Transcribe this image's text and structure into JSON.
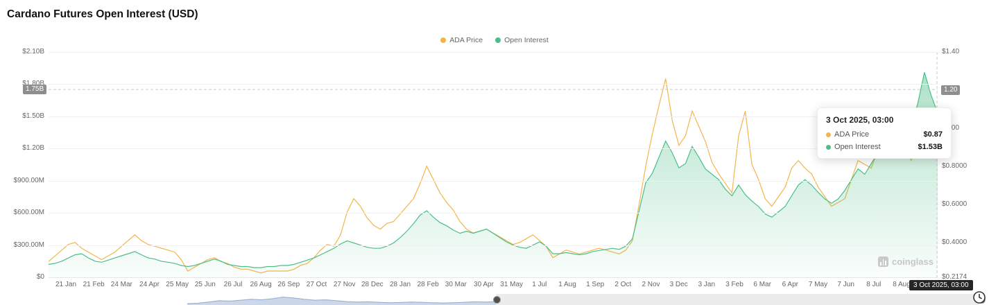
{
  "header": {
    "title": "Cardano Futures Open Interest (USD)"
  },
  "legend": [
    {
      "label": "ADA Price",
      "color": "#F2B54A"
    },
    {
      "label": "Open Interest",
      "color": "#4BBE87"
    }
  ],
  "tooltip": {
    "title": "3 Oct 2025, 03:00",
    "rows": [
      {
        "label": "ADA Price",
        "value": "$0.87",
        "color": "#F2B54A"
      },
      {
        "label": "Open Interest",
        "value": "$1.53B",
        "color": "#4BBE87"
      }
    ]
  },
  "axis_badges": {
    "left": {
      "text": "1.75B",
      "value": 1.75
    },
    "right": {
      "text": "1.20",
      "value": 1.2
    }
  },
  "crosshair": {
    "x_label": "3 Oct 2025, 03:00"
  },
  "watermark": {
    "text": "coinglass"
  },
  "chart_data": {
    "type": "line",
    "title": "Cardano Futures Open Interest (USD)",
    "xlabel": "",
    "ylabel_left": "Open Interest (USD)",
    "ylabel_right": "ADA Price (USD)",
    "legend_position": "top-center",
    "grid": "horizontal",
    "x_labels": [
      "21 Jan",
      "21 Feb",
      "24 Mar",
      "24 Apr",
      "25 May",
      "25 Jun",
      "26 Jul",
      "26 Aug",
      "26 Sep",
      "27 Oct",
      "27 Nov",
      "28 Dec",
      "28 Jan",
      "28 Feb",
      "30 Mar",
      "30 Apr",
      "31 May",
      "1 Jul",
      "1 Aug",
      "1 Sep",
      "2 Oct",
      "2 Nov",
      "3 Dec",
      "3 Jan",
      "3 Feb",
      "6 Mar",
      "6 Apr",
      "7 May",
      "7 Jun",
      "8 Jul",
      "8 Aug"
    ],
    "y_left": {
      "min": 0,
      "max": 2.1,
      "unit": "USD billions",
      "ticks": [
        {
          "v": 2.1,
          "label": "$2.10B"
        },
        {
          "v": 1.8,
          "label": "$1.80B"
        },
        {
          "v": 1.5,
          "label": "$1.50B"
        },
        {
          "v": 1.2,
          "label": "$1.20B"
        },
        {
          "v": 0.9,
          "label": "$900.00M"
        },
        {
          "v": 0.6,
          "label": "$600.00M"
        },
        {
          "v": 0.3,
          "label": "$300.00M"
        },
        {
          "v": 0.0,
          "label": "$0"
        }
      ]
    },
    "y_right": {
      "min": 0.2174,
      "max": 1.4,
      "unit": "USD",
      "ticks": [
        {
          "v": 1.4,
          "label": "$1.40"
        },
        {
          "v": 1.2,
          "label": "$1.20"
        },
        {
          "v": 1.0,
          "label": "$1.00"
        },
        {
          "v": 0.8,
          "label": "$0.8000"
        },
        {
          "v": 0.6,
          "label": "$0.6000"
        },
        {
          "v": 0.4,
          "label": "$0.4000"
        },
        {
          "v": 0.2174,
          "label": "$0.2174"
        }
      ]
    },
    "series": [
      {
        "name": "ADA Price",
        "axis": "right",
        "color": "#F2B54A",
        "fill": false,
        "values": [
          0.3,
          0.33,
          0.36,
          0.39,
          0.4,
          0.37,
          0.35,
          0.33,
          0.31,
          0.33,
          0.35,
          0.38,
          0.41,
          0.44,
          0.41,
          0.39,
          0.38,
          0.37,
          0.36,
          0.35,
          0.31,
          0.25,
          0.27,
          0.29,
          0.31,
          0.32,
          0.3,
          0.29,
          0.27,
          0.26,
          0.26,
          0.25,
          0.24,
          0.25,
          0.25,
          0.25,
          0.25,
          0.26,
          0.28,
          0.29,
          0.32,
          0.36,
          0.39,
          0.38,
          0.44,
          0.56,
          0.63,
          0.59,
          0.53,
          0.49,
          0.47,
          0.5,
          0.51,
          0.55,
          0.59,
          0.63,
          0.71,
          0.8,
          0.73,
          0.66,
          0.61,
          0.57,
          0.51,
          0.47,
          0.45,
          0.46,
          0.47,
          0.45,
          0.43,
          0.41,
          0.39,
          0.4,
          0.42,
          0.44,
          0.41,
          0.38,
          0.32,
          0.34,
          0.36,
          0.35,
          0.34,
          0.35,
          0.36,
          0.37,
          0.36,
          0.35,
          0.34,
          0.36,
          0.41,
          0.6,
          0.8,
          0.97,
          1.12,
          1.26,
          1.04,
          0.91,
          0.96,
          1.09,
          1.01,
          0.93,
          0.82,
          0.76,
          0.71,
          0.66,
          0.96,
          1.09,
          0.81,
          0.73,
          0.63,
          0.59,
          0.64,
          0.69,
          0.79,
          0.83,
          0.79,
          0.76,
          0.69,
          0.64,
          0.59,
          0.61,
          0.63,
          0.73,
          0.83,
          0.81,
          0.79,
          0.89,
          0.96,
          0.91,
          0.86,
          0.91,
          0.83,
          0.89,
          0.93,
          0.86,
          0.87
        ]
      },
      {
        "name": "Open Interest",
        "axis": "left",
        "color": "#4BBE87",
        "fill": true,
        "values": [
          0.12,
          0.13,
          0.15,
          0.18,
          0.21,
          0.22,
          0.18,
          0.15,
          0.14,
          0.16,
          0.18,
          0.2,
          0.22,
          0.24,
          0.21,
          0.18,
          0.17,
          0.15,
          0.14,
          0.13,
          0.11,
          0.1,
          0.11,
          0.13,
          0.15,
          0.17,
          0.15,
          0.12,
          0.11,
          0.1,
          0.1,
          0.09,
          0.09,
          0.1,
          0.1,
          0.11,
          0.11,
          0.12,
          0.14,
          0.16,
          0.18,
          0.21,
          0.24,
          0.27,
          0.31,
          0.34,
          0.32,
          0.3,
          0.28,
          0.27,
          0.27,
          0.29,
          0.32,
          0.37,
          0.43,
          0.5,
          0.58,
          0.62,
          0.56,
          0.51,
          0.48,
          0.44,
          0.41,
          0.43,
          0.41,
          0.43,
          0.45,
          0.41,
          0.37,
          0.33,
          0.3,
          0.28,
          0.27,
          0.3,
          0.33,
          0.29,
          0.22,
          0.22,
          0.23,
          0.22,
          0.21,
          0.22,
          0.24,
          0.25,
          0.26,
          0.27,
          0.26,
          0.29,
          0.36,
          0.62,
          0.88,
          0.97,
          1.12,
          1.27,
          1.16,
          1.02,
          1.06,
          1.22,
          1.12,
          1.01,
          0.96,
          0.91,
          0.82,
          0.76,
          0.86,
          0.77,
          0.71,
          0.66,
          0.59,
          0.56,
          0.61,
          0.66,
          0.76,
          0.86,
          0.91,
          0.86,
          0.79,
          0.73,
          0.69,
          0.73,
          0.81,
          0.91,
          1.01,
          0.96,
          1.06,
          1.16,
          1.31,
          1.21,
          1.36,
          1.51,
          1.41,
          1.62,
          1.91,
          1.7,
          1.53
        ]
      }
    ],
    "navigator": {
      "values": [
        0.08,
        0.12,
        0.25,
        0.4,
        0.35,
        0.45,
        0.55,
        0.5,
        0.62,
        0.8,
        0.7,
        0.55,
        0.45,
        0.5,
        0.4,
        0.3,
        0.25,
        0.28,
        0.22,
        0.18,
        0.2,
        0.25,
        0.22,
        0.18,
        0.15,
        0.18,
        0.22,
        0.28,
        0.25,
        0.3
      ]
    }
  }
}
